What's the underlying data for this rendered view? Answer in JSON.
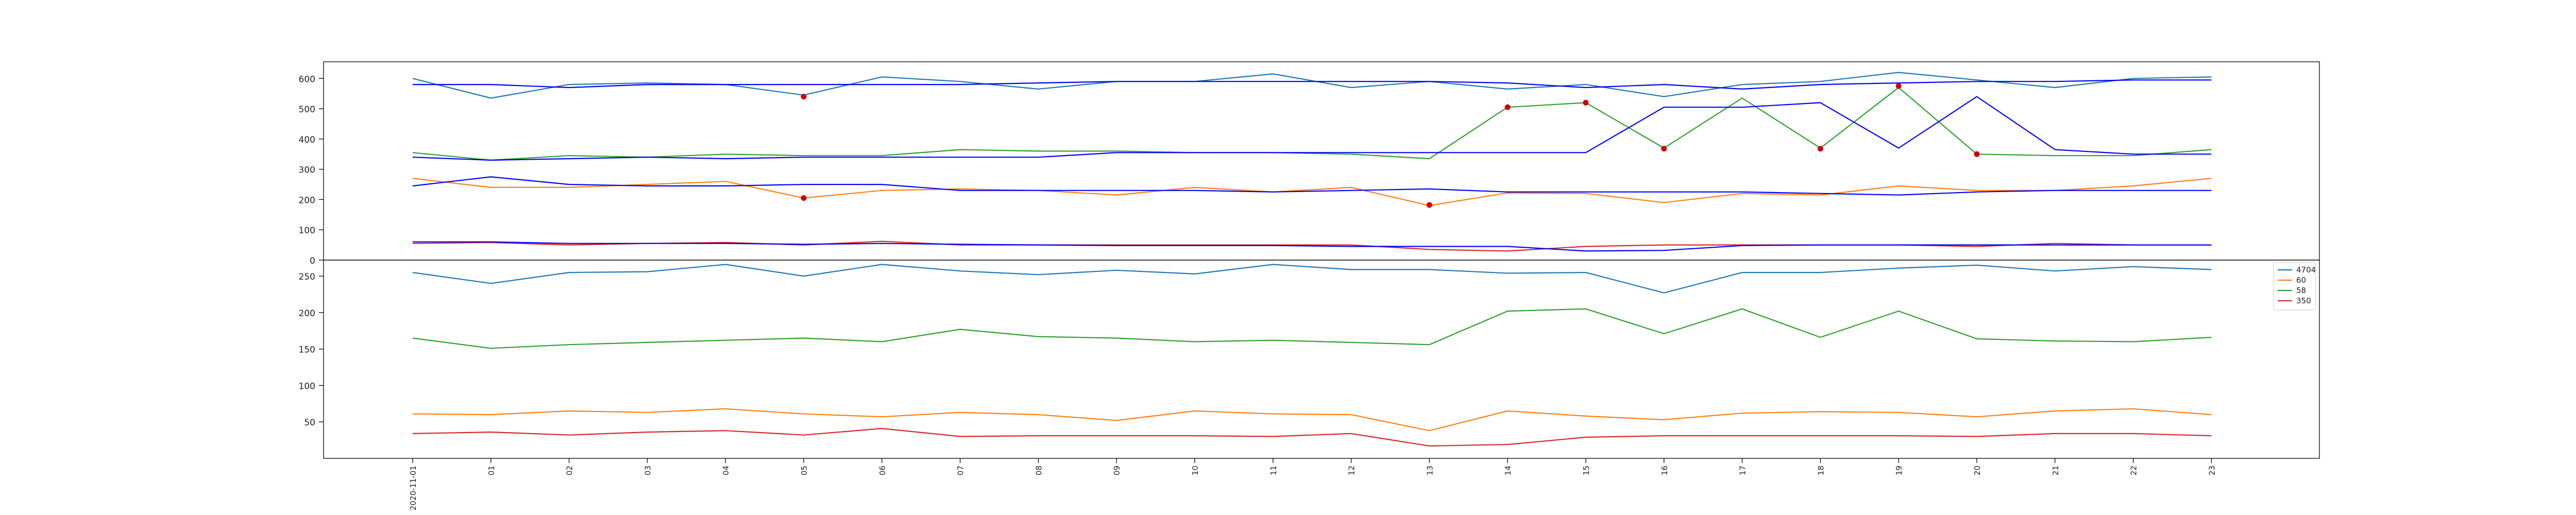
{
  "chart_data": [
    {
      "type": "line",
      "title": "",
      "xlabel": "",
      "ylabel": "",
      "x": [
        "2020-11-01",
        "01",
        "02",
        "03",
        "04",
        "05",
        "06",
        "07",
        "08",
        "09",
        "10",
        "11",
        "12",
        "13",
        "14",
        "15",
        "16",
        "17",
        "18",
        "19",
        "20",
        "21",
        "22",
        "23"
      ],
      "yticks": [
        0,
        100,
        200,
        300,
        400,
        500,
        600
      ],
      "ylim": [
        0,
        655
      ],
      "grid": false,
      "series": [
        {
          "color": "#1f77b4",
          "values": [
            600,
            535,
            580,
            585,
            580,
            545,
            605,
            590,
            565,
            590,
            590,
            615,
            570,
            590,
            565,
            580,
            540,
            580,
            590,
            620,
            595,
            570,
            600,
            605
          ]
        },
        {
          "color": "#ff7f0e",
          "values": [
            270,
            240,
            240,
            250,
            260,
            205,
            230,
            235,
            230,
            215,
            240,
            225,
            240,
            180,
            222,
            220,
            190,
            220,
            215,
            245,
            230,
            230,
            245,
            270
          ]
        },
        {
          "color": "#2ca02c",
          "values": [
            355,
            330,
            345,
            340,
            350,
            345,
            345,
            365,
            360,
            360,
            355,
            355,
            350,
            335,
            505,
            520,
            370,
            535,
            370,
            570,
            350,
            345,
            345,
            365
          ]
        },
        {
          "color": "#d62728",
          "values": [
            55,
            58,
            50,
            55,
            58,
            50,
            62,
            50,
            50,
            50,
            50,
            50,
            50,
            35,
            30,
            45,
            50,
            50,
            50,
            50,
            45,
            55,
            50,
            50
          ]
        },
        {
          "color": "#0000ff",
          "values": [
            580,
            580,
            570,
            580,
            580,
            580,
            580,
            580,
            585,
            590,
            590,
            590,
            590,
            590,
            585,
            570,
            580,
            565,
            580,
            585,
            590,
            590,
            595,
            595
          ]
        },
        {
          "color": "#0000ff",
          "values": [
            340,
            330,
            335,
            340,
            335,
            340,
            340,
            340,
            340,
            355,
            355,
            355,
            355,
            355,
            355,
            355,
            505,
            505,
            520,
            370,
            540,
            365,
            350,
            350
          ]
        },
        {
          "color": "#0000ff",
          "values": [
            245,
            275,
            250,
            245,
            245,
            250,
            250,
            230,
            230,
            230,
            230,
            225,
            230,
            235,
            225,
            225,
            225,
            225,
            220,
            215,
            225,
            230,
            230,
            230
          ]
        },
        {
          "color": "#0000ff",
          "values": [
            60,
            60,
            55,
            55,
            55,
            52,
            55,
            52,
            50,
            48,
            48,
            48,
            45,
            45,
            45,
            30,
            32,
            48,
            50,
            50,
            50,
            50,
            50,
            50
          ]
        }
      ],
      "markers": {
        "color": "#d00000",
        "points": [
          {
            "x": "05",
            "y": 540
          },
          {
            "x": "14",
            "y": 505
          },
          {
            "x": "15",
            "y": 520
          },
          {
            "x": "16",
            "y": 368
          },
          {
            "x": "18",
            "y": 368
          },
          {
            "x": "19",
            "y": 575
          },
          {
            "x": "20",
            "y": 350
          },
          {
            "x": "05",
            "y": 205
          },
          {
            "x": "13",
            "y": 182
          }
        ]
      }
    },
    {
      "type": "line",
      "title": "",
      "xlabel": "",
      "ylabel": "",
      "x": [
        "2020-11-01",
        "01",
        "02",
        "03",
        "04",
        "05",
        "06",
        "07",
        "08",
        "09",
        "10",
        "11",
        "12",
        "13",
        "14",
        "15",
        "16",
        "17",
        "18",
        "19",
        "20",
        "21",
        "22",
        "23"
      ],
      "yticks": [
        50,
        100,
        150,
        200,
        250
      ],
      "ylim": [
        0,
        272
      ],
      "grid": false,
      "legend": {
        "placement": "top-right"
      },
      "series": [
        {
          "name": "4704",
          "color": "#1f77b4",
          "values": [
            255,
            240,
            255,
            256,
            266,
            250,
            266,
            257,
            252,
            258,
            253,
            266,
            259,
            259,
            254,
            255,
            227,
            255,
            255,
            261,
            265,
            257,
            263,
            259
          ]
        },
        {
          "name": "60",
          "color": "#ff7f0e",
          "values": [
            61,
            60,
            65,
            63,
            68,
            61,
            57,
            63,
            60,
            52,
            65,
            61,
            60,
            38,
            65,
            58,
            53,
            62,
            64,
            63,
            57,
            65,
            68,
            60
          ]
        },
        {
          "name": "58",
          "color": "#2ca02c",
          "values": [
            165,
            151,
            156,
            159,
            162,
            165,
            160,
            177,
            167,
            165,
            160,
            162,
            159,
            156,
            202,
            205,
            171,
            205,
            166,
            202,
            164,
            161,
            160,
            166
          ]
        },
        {
          "name": "350",
          "color": "#d62728",
          "values": [
            34,
            36,
            32,
            36,
            38,
            32,
            41,
            30,
            31,
            31,
            31,
            30,
            34,
            17,
            19,
            29,
            31,
            31,
            31,
            31,
            30,
            34,
            34,
            31
          ]
        }
      ]
    }
  ]
}
